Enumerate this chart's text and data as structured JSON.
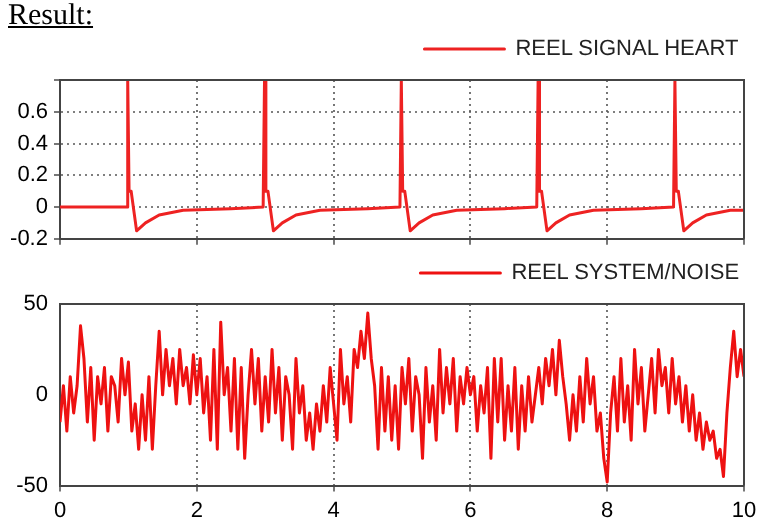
{
  "chart_data": [
    {
      "type": "line",
      "title": "Result:",
      "legend": "top right",
      "grid": true,
      "marker": "none",
      "line_style": "solid",
      "tick_labels": "y",
      "xlim": [
        0,
        10
      ],
      "xticks": [
        0,
        2,
        4,
        6,
        8,
        10
      ],
      "ylim": [
        -0.2,
        0.8
      ],
      "yticks": [
        -0.2,
        0,
        0.2,
        0.4,
        0.6,
        {
          "value": 0.8,
          "label": null
        }
      ],
      "x": [
        0,
        0.97,
        0.99,
        1.01,
        1.04,
        1.12,
        1.25,
        1.45,
        1.8,
        2.5,
        2.97,
        2.99,
        3.01,
        3.04,
        3.12,
        3.25,
        3.45,
        3.8,
        4.5,
        4.97,
        4.99,
        5.01,
        5.04,
        5.12,
        5.25,
        5.45,
        5.8,
        6.5,
        6.97,
        6.99,
        7.01,
        7.04,
        7.12,
        7.25,
        7.45,
        7.8,
        8.5,
        8.97,
        8.99,
        9.01,
        9.04,
        9.12,
        9.25,
        9.45,
        9.8,
        10
      ],
      "series": [
        {
          "name": "REEL SIGNAL HEART",
          "color": "#ee2222",
          "values": [
            0,
            0,
            0.8,
            0.1,
            0.1,
            -0.15,
            -0.1,
            -0.05,
            -0.02,
            -0.01,
            0,
            0.8,
            0.1,
            0.1,
            -0.15,
            -0.1,
            -0.05,
            -0.02,
            -0.01,
            0,
            0.8,
            0.1,
            0.1,
            -0.15,
            -0.1,
            -0.05,
            -0.02,
            -0.01,
            0,
            0.8,
            0.1,
            0.1,
            -0.15,
            -0.1,
            -0.05,
            -0.02,
            -0.01,
            0,
            0.8,
            0.1,
            0.1,
            -0.15,
            -0.1,
            -0.05,
            -0.02,
            -0.02
          ]
        }
      ]
    },
    {
      "type": "line",
      "legend": "top right",
      "grid": "x",
      "marker": "none",
      "line_style": "solid",
      "xlim": [
        0,
        10
      ],
      "xticks": [
        0,
        2,
        4,
        6,
        8,
        10
      ],
      "ylim": [
        -50,
        50
      ],
      "yticks": [
        -50,
        0,
        50
      ],
      "x": [
        0,
        0.05,
        0.1,
        0.15,
        0.2,
        0.25,
        0.3,
        0.35,
        0.4,
        0.45,
        0.5,
        0.55,
        0.6,
        0.65,
        0.7,
        0.75,
        0.8,
        0.85,
        0.9,
        0.95,
        1,
        1.05,
        1.1,
        1.15,
        1.2,
        1.25,
        1.3,
        1.35,
        1.4,
        1.45,
        1.5,
        1.55,
        1.6,
        1.65,
        1.7,
        1.75,
        1.8,
        1.85,
        1.9,
        1.95,
        2,
        2.05,
        2.1,
        2.15,
        2.2,
        2.25,
        2.3,
        2.35,
        2.4,
        2.45,
        2.5,
        2.55,
        2.6,
        2.65,
        2.7,
        2.75,
        2.8,
        2.85,
        2.9,
        2.95,
        3,
        3.05,
        3.1,
        3.15,
        3.2,
        3.25,
        3.3,
        3.35,
        3.4,
        3.45,
        3.5,
        3.55,
        3.6,
        3.65,
        3.7,
        3.75,
        3.8,
        3.85,
        3.9,
        3.95,
        4,
        4.05,
        4.1,
        4.15,
        4.2,
        4.25,
        4.3,
        4.35,
        4.4,
        4.45,
        4.5,
        4.55,
        4.6,
        4.65,
        4.7,
        4.75,
        4.8,
        4.85,
        4.9,
        4.95,
        5,
        5.05,
        5.1,
        5.15,
        5.2,
        5.25,
        5.3,
        5.35,
        5.4,
        5.45,
        5.5,
        5.55,
        5.6,
        5.65,
        5.7,
        5.75,
        5.8,
        5.85,
        5.9,
        5.95,
        6,
        6.05,
        6.1,
        6.15,
        6.2,
        6.25,
        6.3,
        6.35,
        6.4,
        6.45,
        6.5,
        6.55,
        6.6,
        6.65,
        6.7,
        6.75,
        6.8,
        6.85,
        6.9,
        6.95,
        7,
        7.05,
        7.1,
        7.15,
        7.2,
        7.25,
        7.3,
        7.35,
        7.4,
        7.45,
        7.5,
        7.55,
        7.6,
        7.65,
        7.7,
        7.75,
        7.8,
        7.85,
        7.9,
        7.95,
        8,
        8.05,
        8.1,
        8.15,
        8.2,
        8.25,
        8.3,
        8.35,
        8.4,
        8.45,
        8.5,
        8.55,
        8.6,
        8.65,
        8.7,
        8.75,
        8.8,
        8.85,
        8.9,
        8.95,
        9,
        9.05,
        9.1,
        9.15,
        9.2,
        9.25,
        9.3,
        9.35,
        9.4,
        9.45,
        9.5,
        9.55,
        9.6,
        9.65,
        9.7,
        9.75,
        9.8,
        9.85,
        9.9,
        9.95,
        10
      ],
      "series": [
        {
          "name": "REEL SYSTEM/NOISE",
          "color": "#ee1111",
          "values": [
            -15,
            5,
            -20,
            10,
            -10,
            5,
            38,
            20,
            -15,
            15,
            -25,
            10,
            -5,
            15,
            -20,
            10,
            5,
            -15,
            20,
            0,
            18,
            -20,
            -5,
            -30,
            0,
            -25,
            10,
            -30,
            5,
            35,
            0,
            25,
            5,
            20,
            -5,
            25,
            5,
            15,
            -5,
            22,
            0,
            20,
            -10,
            10,
            -25,
            25,
            -30,
            40,
            0,
            15,
            -20,
            20,
            -30,
            15,
            -35,
            0,
            25,
            -5,
            20,
            -20,
            10,
            -15,
            25,
            -10,
            15,
            -25,
            10,
            0,
            -30,
            20,
            -10,
            5,
            -25,
            -10,
            -30,
            -5,
            -20,
            5,
            -15,
            15,
            -5,
            -25,
            25,
            -5,
            10,
            -15,
            25,
            15,
            35,
            20,
            45,
            20,
            5,
            -30,
            15,
            -20,
            10,
            -25,
            5,
            -30,
            15,
            -5,
            20,
            -20,
            10,
            0,
            -35,
            15,
            -15,
            5,
            -25,
            25,
            -10,
            15,
            -5,
            20,
            -20,
            10,
            -5,
            15,
            0,
            10,
            -20,
            5,
            -10,
            15,
            -35,
            20,
            -15,
            20,
            -25,
            5,
            -20,
            15,
            -30,
            5,
            -20,
            10,
            -15,
            0,
            15,
            -5,
            20,
            5,
            25,
            0,
            30,
            10,
            -5,
            -25,
            0,
            -20,
            10,
            -15,
            20,
            -5,
            10,
            -20,
            -10,
            -35,
            -48,
            -10,
            10,
            -20,
            20,
            -15,
            5,
            -25,
            25,
            -5,
            15,
            -20,
            0,
            20,
            -10,
            25,
            5,
            15,
            -10,
            20,
            -5,
            10,
            -15,
            5,
            -20,
            0,
            -25,
            -10,
            -30,
            -15,
            -25,
            -20,
            -35,
            -30,
            -45,
            -10,
            15,
            35,
            10,
            25,
            10
          ]
        }
      ]
    }
  ]
}
